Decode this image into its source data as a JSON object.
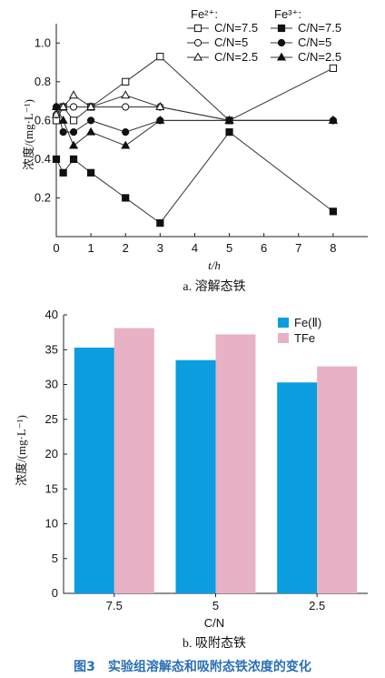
{
  "chart_data": [
    {
      "type": "line",
      "caption": "a. 溶解态铁",
      "xlabel": "t/h",
      "ylabel": "浓度/(mg·L⁻¹)",
      "xlim": [
        0,
        9
      ],
      "ylim": [
        0,
        1.1
      ],
      "x_ticks": [
        "0",
        "1",
        "2",
        "3",
        "4",
        "5",
        "6",
        "7",
        "8"
      ],
      "y_ticks": [
        "0.2",
        "0.4",
        "0.6",
        "0.8",
        "1.0"
      ],
      "x_ticks_val": [
        0,
        1,
        2,
        3,
        4,
        5,
        6,
        7,
        8
      ],
      "y_ticks_val": [
        0.2,
        0.4,
        0.6,
        0.8,
        1.0
      ],
      "legend_group_fe2": "Fe²⁺:",
      "legend_group_fe3": "Fe³⁺:",
      "legend_placement": "top-right",
      "series": [
        {
          "name": "C/N=7.5",
          "group": "Fe2",
          "marker": "square-open",
          "x": [
            0,
            0.2,
            0.5,
            1,
            2,
            3,
            5,
            8
          ],
          "values": [
            0.6,
            0.67,
            0.6,
            0.67,
            0.8,
            0.93,
            0.6,
            0.87
          ]
        },
        {
          "name": "C/N=5",
          "group": "Fe2",
          "marker": "circle-open",
          "x": [
            0,
            0.2,
            0.5,
            1,
            2,
            3,
            5,
            8
          ],
          "values": [
            0.63,
            0.67,
            0.67,
            0.67,
            0.67,
            0.67,
            0.6,
            0.6
          ]
        },
        {
          "name": "C/N=2.5",
          "group": "Fe2",
          "marker": "triangle-open",
          "x": [
            0,
            0.2,
            0.5,
            1,
            2,
            3,
            5,
            8
          ],
          "values": [
            0.63,
            0.67,
            0.73,
            0.67,
            0.73,
            0.67,
            0.6,
            0.6
          ]
        },
        {
          "name": "C/N=7.5",
          "group": "Fe3",
          "marker": "square-filled",
          "x": [
            0,
            0.2,
            0.5,
            1,
            2,
            3,
            5,
            8
          ],
          "values": [
            0.4,
            0.33,
            0.4,
            0.33,
            0.2,
            0.07,
            0.54,
            0.13
          ]
        },
        {
          "name": "C/N=5",
          "group": "Fe3",
          "marker": "circle-filled",
          "x": [
            0,
            0.2,
            0.5,
            1,
            2,
            3,
            5,
            8
          ],
          "values": [
            0.67,
            0.54,
            0.54,
            0.6,
            0.54,
            0.6,
            0.6,
            0.6
          ]
        },
        {
          "name": "C/N=2.5",
          "group": "Fe3",
          "marker": "triangle-filled",
          "x": [
            0,
            0.2,
            0.5,
            1,
            2,
            3,
            5,
            8
          ],
          "values": [
            0.67,
            0.6,
            0.47,
            0.54,
            0.47,
            0.6,
            0.6,
            0.6
          ]
        }
      ]
    },
    {
      "type": "bar",
      "caption": "b. 吸附态铁",
      "xlabel": "C/N",
      "ylabel": "浓度/(mg·L⁻¹)",
      "ylim": [
        0,
        40
      ],
      "y_ticks": [
        "0",
        "5",
        "10",
        "15",
        "20",
        "25",
        "30",
        "35",
        "40"
      ],
      "y_ticks_val": [
        0,
        5,
        10,
        15,
        20,
        25,
        30,
        35,
        40
      ],
      "categories": [
        "7.5",
        "5",
        "2.5"
      ],
      "legend_placement": "top-right",
      "series": [
        {
          "name": "Fe(Ⅱ)",
          "color": "#0a9ee0",
          "values": [
            35.3,
            33.5,
            30.3
          ]
        },
        {
          "name": "TFe",
          "color": "#e8b1c6",
          "values": [
            38.1,
            37.2,
            32.6
          ]
        }
      ]
    }
  ],
  "figure_caption": "图3　实验组溶解态和吸附态铁浓度的变化"
}
